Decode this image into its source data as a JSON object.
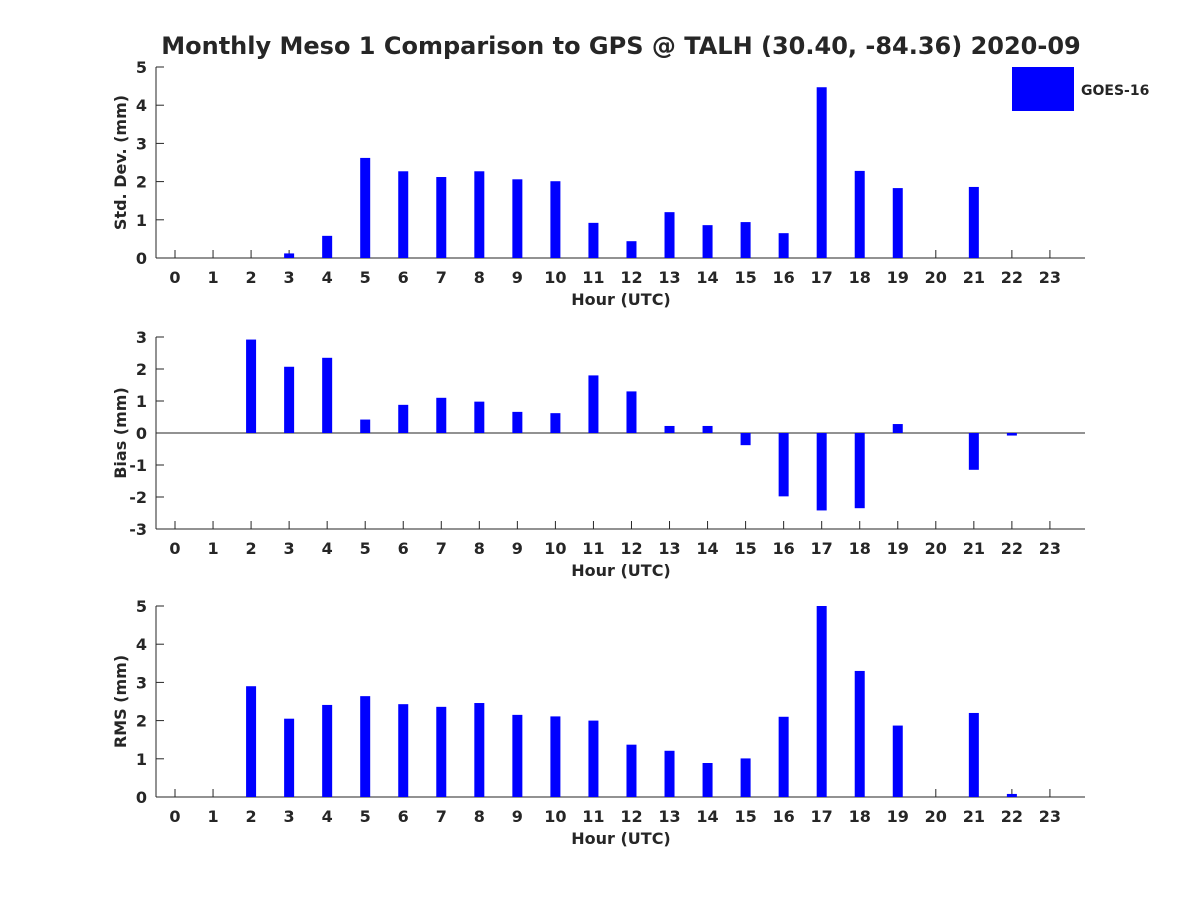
{
  "figure": {
    "title": "Monthly Meso 1 Comparison to GPS @ TALH (30.40, -84.36) 2020-09"
  },
  "legend": {
    "label": "GOES-16",
    "color": "#0000ff",
    "placement": "top-right"
  },
  "chart_data": [
    {
      "type": "bar",
      "ylabel": "Std. Dev. (mm)",
      "xlabel": "Hour (UTC)",
      "ylim": [
        0,
        5
      ],
      "yticks": [
        0,
        1,
        2,
        3,
        4,
        5
      ],
      "categories": [
        "0",
        "1",
        "2",
        "3",
        "4",
        "5",
        "6",
        "7",
        "8",
        "9",
        "10",
        "11",
        "12",
        "13",
        "14",
        "15",
        "16",
        "17",
        "18",
        "19",
        "20",
        "21",
        "22",
        "23"
      ],
      "series": [
        {
          "name": "GOES-16",
          "color": "#0000ff",
          "values": [
            null,
            null,
            null,
            0.12,
            0.58,
            2.62,
            2.27,
            2.12,
            2.27,
            2.06,
            2.01,
            0.92,
            0.44,
            1.2,
            0.86,
            0.94,
            0.65,
            4.47,
            2.28,
            1.83,
            null,
            1.86,
            null,
            null
          ]
        }
      ]
    },
    {
      "type": "bar",
      "ylabel": "Bias (mm)",
      "xlabel": "Hour (UTC)",
      "ylim": [
        -3,
        3
      ],
      "yticks": [
        -3,
        -2,
        -1,
        0,
        1,
        2,
        3
      ],
      "categories": [
        "0",
        "1",
        "2",
        "3",
        "4",
        "5",
        "6",
        "7",
        "8",
        "9",
        "10",
        "11",
        "12",
        "13",
        "14",
        "15",
        "16",
        "17",
        "18",
        "19",
        "20",
        "21",
        "22",
        "23"
      ],
      "series": [
        {
          "name": "GOES-16",
          "color": "#0000ff",
          "values": [
            null,
            null,
            2.92,
            2.07,
            2.35,
            0.42,
            0.88,
            1.1,
            0.98,
            0.66,
            0.62,
            1.8,
            1.3,
            0.22,
            0.22,
            -0.38,
            -1.98,
            -2.42,
            -2.35,
            0.28,
            null,
            -1.15,
            -0.08,
            null
          ]
        }
      ]
    },
    {
      "type": "bar",
      "ylabel": "RMS (mm)",
      "xlabel": "Hour (UTC)",
      "ylim": [
        0,
        5
      ],
      "yticks": [
        0,
        1,
        2,
        3,
        4,
        5
      ],
      "categories": [
        "0",
        "1",
        "2",
        "3",
        "4",
        "5",
        "6",
        "7",
        "8",
        "9",
        "10",
        "11",
        "12",
        "13",
        "14",
        "15",
        "16",
        "17",
        "18",
        "19",
        "20",
        "21",
        "22",
        "23"
      ],
      "series": [
        {
          "name": "GOES-16",
          "color": "#0000ff",
          "values": [
            null,
            null,
            2.9,
            2.05,
            2.41,
            2.64,
            2.43,
            2.36,
            2.46,
            2.15,
            2.11,
            2.0,
            1.37,
            1.21,
            0.89,
            1.01,
            2.1,
            5.0,
            3.3,
            1.87,
            null,
            2.2,
            0.08,
            null
          ]
        }
      ]
    }
  ]
}
